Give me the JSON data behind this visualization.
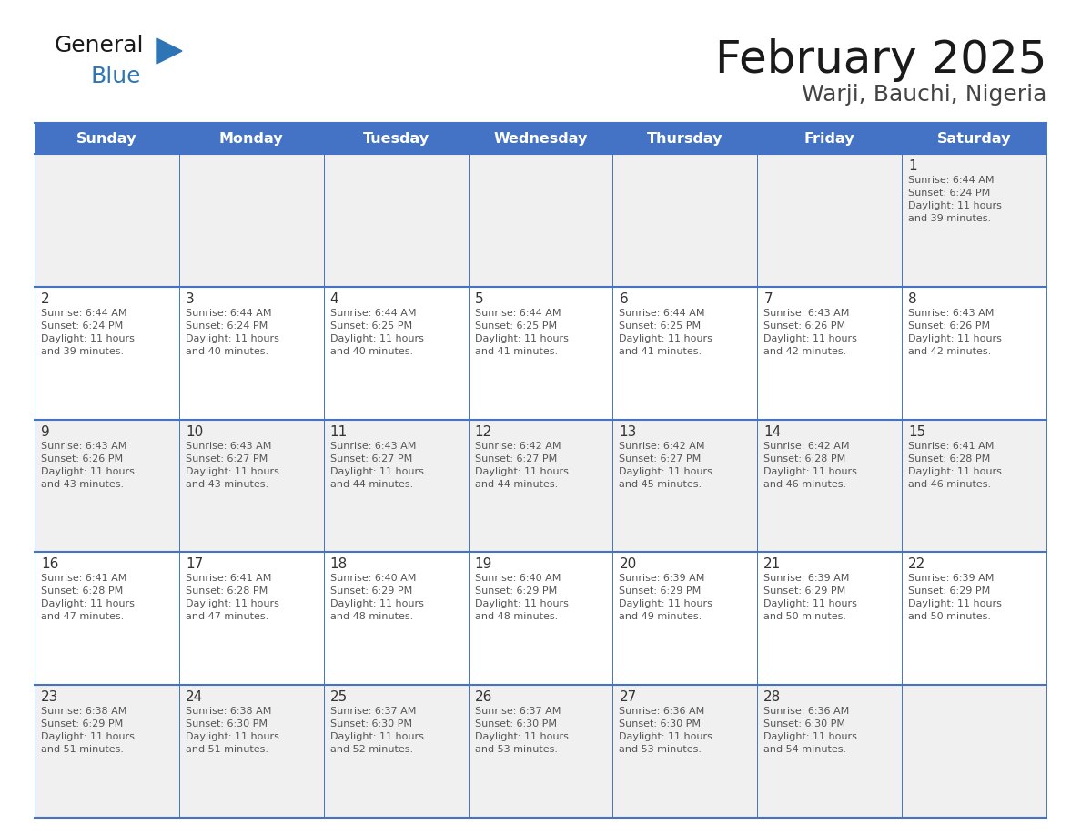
{
  "title": "February 2025",
  "subtitle": "Warji, Bauchi, Nigeria",
  "days_of_week": [
    "Sunday",
    "Monday",
    "Tuesday",
    "Wednesday",
    "Thursday",
    "Friday",
    "Saturday"
  ],
  "header_bg_color": "#4472C4",
  "header_text_color": "#FFFFFF",
  "cell_bg_color_odd": "#F0F0F0",
  "cell_bg_color_even": "#FFFFFF",
  "grid_line_color": "#4472C4",
  "day_number_color": "#333333",
  "day_info_color": "#555555",
  "title_color": "#1a1a1a",
  "subtitle_color": "#444444",
  "logo_general_color": "#1a1a1a",
  "logo_blue_color": "#2E75B6",
  "weeks": [
    {
      "days": [
        {
          "day": null,
          "info": null
        },
        {
          "day": null,
          "info": null
        },
        {
          "day": null,
          "info": null
        },
        {
          "day": null,
          "info": null
        },
        {
          "day": null,
          "info": null
        },
        {
          "day": null,
          "info": null
        },
        {
          "day": 1,
          "info": "Sunrise: 6:44 AM\nSunset: 6:24 PM\nDaylight: 11 hours\nand 39 minutes."
        }
      ]
    },
    {
      "days": [
        {
          "day": 2,
          "info": "Sunrise: 6:44 AM\nSunset: 6:24 PM\nDaylight: 11 hours\nand 39 minutes."
        },
        {
          "day": 3,
          "info": "Sunrise: 6:44 AM\nSunset: 6:24 PM\nDaylight: 11 hours\nand 40 minutes."
        },
        {
          "day": 4,
          "info": "Sunrise: 6:44 AM\nSunset: 6:25 PM\nDaylight: 11 hours\nand 40 minutes."
        },
        {
          "day": 5,
          "info": "Sunrise: 6:44 AM\nSunset: 6:25 PM\nDaylight: 11 hours\nand 41 minutes."
        },
        {
          "day": 6,
          "info": "Sunrise: 6:44 AM\nSunset: 6:25 PM\nDaylight: 11 hours\nand 41 minutes."
        },
        {
          "day": 7,
          "info": "Sunrise: 6:43 AM\nSunset: 6:26 PM\nDaylight: 11 hours\nand 42 minutes."
        },
        {
          "day": 8,
          "info": "Sunrise: 6:43 AM\nSunset: 6:26 PM\nDaylight: 11 hours\nand 42 minutes."
        }
      ]
    },
    {
      "days": [
        {
          "day": 9,
          "info": "Sunrise: 6:43 AM\nSunset: 6:26 PM\nDaylight: 11 hours\nand 43 minutes."
        },
        {
          "day": 10,
          "info": "Sunrise: 6:43 AM\nSunset: 6:27 PM\nDaylight: 11 hours\nand 43 minutes."
        },
        {
          "day": 11,
          "info": "Sunrise: 6:43 AM\nSunset: 6:27 PM\nDaylight: 11 hours\nand 44 minutes."
        },
        {
          "day": 12,
          "info": "Sunrise: 6:42 AM\nSunset: 6:27 PM\nDaylight: 11 hours\nand 44 minutes."
        },
        {
          "day": 13,
          "info": "Sunrise: 6:42 AM\nSunset: 6:27 PM\nDaylight: 11 hours\nand 45 minutes."
        },
        {
          "day": 14,
          "info": "Sunrise: 6:42 AM\nSunset: 6:28 PM\nDaylight: 11 hours\nand 46 minutes."
        },
        {
          "day": 15,
          "info": "Sunrise: 6:41 AM\nSunset: 6:28 PM\nDaylight: 11 hours\nand 46 minutes."
        }
      ]
    },
    {
      "days": [
        {
          "day": 16,
          "info": "Sunrise: 6:41 AM\nSunset: 6:28 PM\nDaylight: 11 hours\nand 47 minutes."
        },
        {
          "day": 17,
          "info": "Sunrise: 6:41 AM\nSunset: 6:28 PM\nDaylight: 11 hours\nand 47 minutes."
        },
        {
          "day": 18,
          "info": "Sunrise: 6:40 AM\nSunset: 6:29 PM\nDaylight: 11 hours\nand 48 minutes."
        },
        {
          "day": 19,
          "info": "Sunrise: 6:40 AM\nSunset: 6:29 PM\nDaylight: 11 hours\nand 48 minutes."
        },
        {
          "day": 20,
          "info": "Sunrise: 6:39 AM\nSunset: 6:29 PM\nDaylight: 11 hours\nand 49 minutes."
        },
        {
          "day": 21,
          "info": "Sunrise: 6:39 AM\nSunset: 6:29 PM\nDaylight: 11 hours\nand 50 minutes."
        },
        {
          "day": 22,
          "info": "Sunrise: 6:39 AM\nSunset: 6:29 PM\nDaylight: 11 hours\nand 50 minutes."
        }
      ]
    },
    {
      "days": [
        {
          "day": 23,
          "info": "Sunrise: 6:38 AM\nSunset: 6:29 PM\nDaylight: 11 hours\nand 51 minutes."
        },
        {
          "day": 24,
          "info": "Sunrise: 6:38 AM\nSunset: 6:30 PM\nDaylight: 11 hours\nand 51 minutes."
        },
        {
          "day": 25,
          "info": "Sunrise: 6:37 AM\nSunset: 6:30 PM\nDaylight: 11 hours\nand 52 minutes."
        },
        {
          "day": 26,
          "info": "Sunrise: 6:37 AM\nSunset: 6:30 PM\nDaylight: 11 hours\nand 53 minutes."
        },
        {
          "day": 27,
          "info": "Sunrise: 6:36 AM\nSunset: 6:30 PM\nDaylight: 11 hours\nand 53 minutes."
        },
        {
          "day": 28,
          "info": "Sunrise: 6:36 AM\nSunset: 6:30 PM\nDaylight: 11 hours\nand 54 minutes."
        },
        {
          "day": null,
          "info": null
        }
      ]
    }
  ]
}
